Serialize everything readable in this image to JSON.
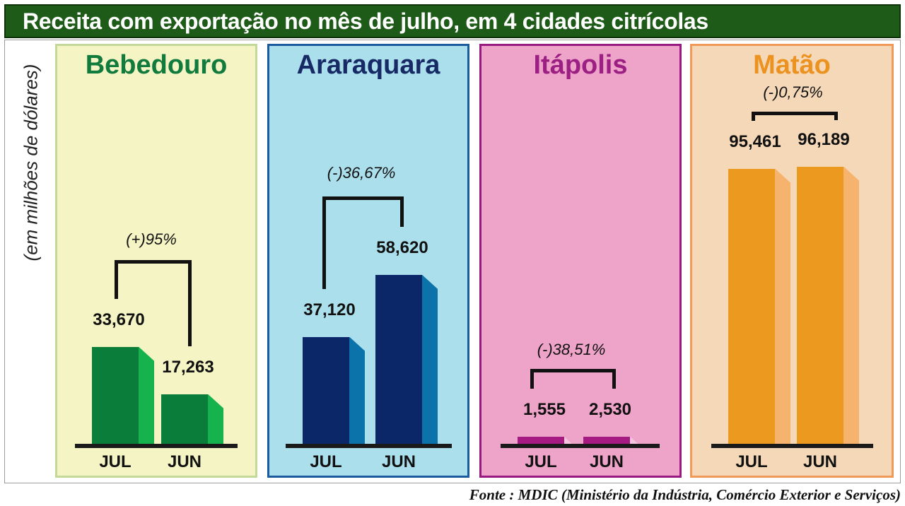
{
  "title": "Receita com exportação no mês de julho, em 4 cidades citrícolas",
  "ylabel": "(em milhões de dólares)",
  "source": "Fonte : MDIC (Ministério da Indústria, Comércio Exterior e Serviços)",
  "chart_data": [
    {
      "type": "bar",
      "title": "Bebedouro",
      "categories": [
        "JUL",
        "JUN"
      ],
      "values": [
        33.67,
        17.263
      ],
      "value_labels": [
        "33,670",
        "17,263"
      ],
      "change_label": "(+)95%",
      "ylabel": "(em milhões de dólares)",
      "colors": {
        "panel_bg": "#f5f4c4",
        "panel_border": "#c3d99a",
        "title": "#117a3d",
        "bar": "#0b7d3b",
        "bar_side": "#16b24e"
      }
    },
    {
      "type": "bar",
      "title": "Araraquara",
      "categories": [
        "JUL",
        "JUN"
      ],
      "values": [
        37.12,
        58.62
      ],
      "value_labels": [
        "37,120",
        "58,620"
      ],
      "change_label": "(-)36,67%",
      "ylabel": "(em milhões de dólares)",
      "colors": {
        "panel_bg": "#abdfec",
        "panel_border": "#1b5a9c",
        "title": "#172a66",
        "bar": "#0b2767",
        "bar_side": "#0b73aa"
      }
    },
    {
      "type": "bar",
      "title": "Itápolis",
      "categories": [
        "JUL",
        "JUN"
      ],
      "values": [
        1.555,
        2.53
      ],
      "value_labels": [
        "1,555",
        "2,530"
      ],
      "change_label": "(-)38,51%",
      "ylabel": "(em milhões de dólares)",
      "colors": {
        "panel_bg": "#eea3c8",
        "panel_border": "#98197f",
        "title": "#9c1f83",
        "bar": "#a51b82",
        "bar_side": "#f4c6dd"
      }
    },
    {
      "type": "bar",
      "title": "Matão",
      "categories": [
        "JUL",
        "JUN"
      ],
      "values": [
        95.461,
        96.189
      ],
      "value_labels": [
        "95,461",
        "96,189"
      ],
      "change_label": "(-)0,75%",
      "ylabel": "(em milhões de dólares)",
      "colors": {
        "panel_bg": "#f4d8b8",
        "panel_border": "#f09a5a",
        "title": "#ec9220",
        "bar": "#ec9920",
        "bar_side": "#f6b36e"
      }
    }
  ]
}
